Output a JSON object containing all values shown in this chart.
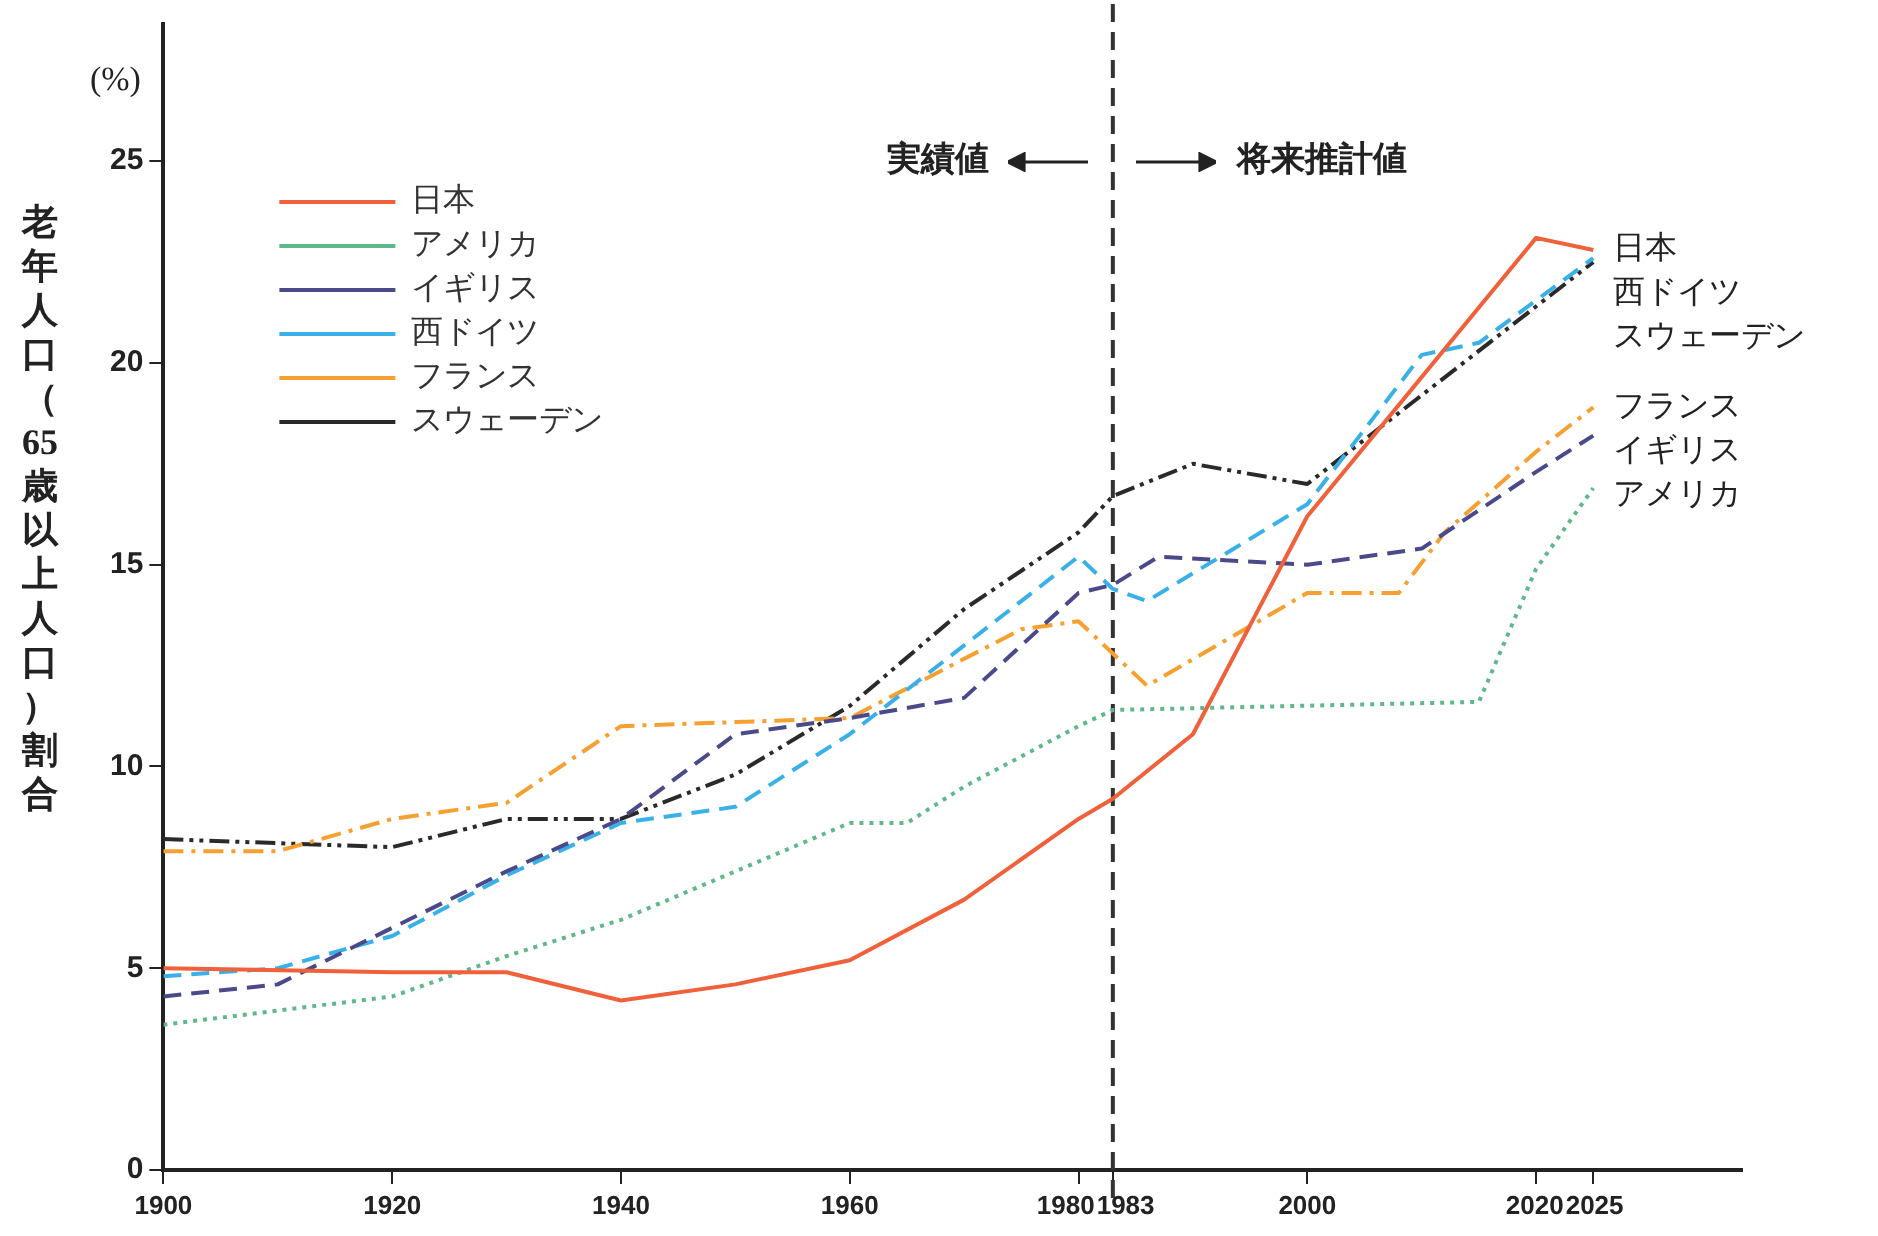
{
  "chart_data": {
    "type": "line",
    "ylabel": "老年人口（65歳以上人口）割合",
    "annotations": [
      "(%)",
      "実績値",
      "将来推計値"
    ],
    "xlim": [
      1900,
      2038
    ],
    "xticks": [
      1900,
      1920,
      1940,
      1960,
      1980,
      1983,
      2000,
      2020,
      2025
    ],
    "ylim": [
      0,
      28.4
    ],
    "yticks": [
      0,
      5,
      10,
      15,
      20,
      25
    ],
    "grid": false,
    "legend": "top left",
    "marker": "none",
    "ref_lines": [
      {
        "axis": "x",
        "value": 1983,
        "color": "#333333",
        "line_style": "dashed"
      }
    ],
    "series": [
      {
        "name": "日本",
        "color": "#f0603a",
        "line_style": "solid",
        "x": [
          1900,
          1920,
          1930,
          1940,
          1950,
          1960,
          1970,
          1980,
          1983,
          1990,
          2000,
          2020,
          2025
        ],
        "values": [
          5.0,
          4.9,
          4.9,
          4.2,
          4.6,
          5.2,
          6.7,
          8.7,
          9.2,
          10.8,
          16.2,
          23.1,
          22.8
        ]
      },
      {
        "name": "アメリカ",
        "color": "#5fb88a",
        "line_style": "dotted",
        "x": [
          1900,
          1920,
          1930,
          1940,
          1950,
          1960,
          1965,
          1970,
          1980,
          1983,
          2015,
          2020,
          2025
        ],
        "values": [
          3.6,
          4.3,
          5.3,
          6.2,
          7.4,
          8.6,
          8.6,
          9.5,
          11.0,
          11.4,
          11.6,
          14.9,
          16.9
        ]
      },
      {
        "name": "イギリス",
        "color": "#4a4a8a",
        "line_style": "dashed",
        "x": [
          1900,
          1910,
          1920,
          1930,
          1940,
          1950,
          1960,
          1970,
          1980,
          1983,
          1987,
          2000,
          2010,
          2020,
          2025
        ],
        "values": [
          4.3,
          4.6,
          6.0,
          7.4,
          8.7,
          10.8,
          11.2,
          11.7,
          14.3,
          14.5,
          15.2,
          15.0,
          15.4,
          17.3,
          18.2
        ]
      },
      {
        "name": "西ドイツ",
        "color": "#3ab0e8",
        "line_style": "dashed",
        "x": [
          1900,
          1910,
          1920,
          1930,
          1940,
          1950,
          1960,
          1970,
          1980,
          1983,
          1986,
          2000,
          2010,
          2015,
          2025
        ],
        "values": [
          4.8,
          5.0,
          5.8,
          7.3,
          8.6,
          9.0,
          10.8,
          13.0,
          15.2,
          14.4,
          14.1,
          16.5,
          20.2,
          20.5,
          22.6
        ]
      },
      {
        "name": "フランス",
        "color": "#f5a030",
        "line_style": "dashdot",
        "x": [
          1900,
          1910,
          1920,
          1930,
          1940,
          1950,
          1960,
          1975,
          1980,
          1986,
          2000,
          2008,
          2012,
          2020,
          2025
        ],
        "values": [
          7.9,
          7.9,
          8.7,
          9.1,
          11.0,
          11.1,
          11.2,
          13.4,
          13.6,
          12.0,
          14.3,
          14.3,
          15.8,
          17.8,
          18.9
        ]
      },
      {
        "name": "スウェーデン",
        "color": "#2a2a2a",
        "line_style": "dashdotdot",
        "x": [
          1900,
          1910,
          1920,
          1930,
          1940,
          1950,
          1960,
          1970,
          1980,
          1983,
          1990,
          2000,
          2010,
          2025
        ],
        "values": [
          8.2,
          8.1,
          8.0,
          8.7,
          8.7,
          9.8,
          11.5,
          13.9,
          15.8,
          16.7,
          17.5,
          17.0,
          19.2,
          22.5
        ]
      }
    ]
  }
}
